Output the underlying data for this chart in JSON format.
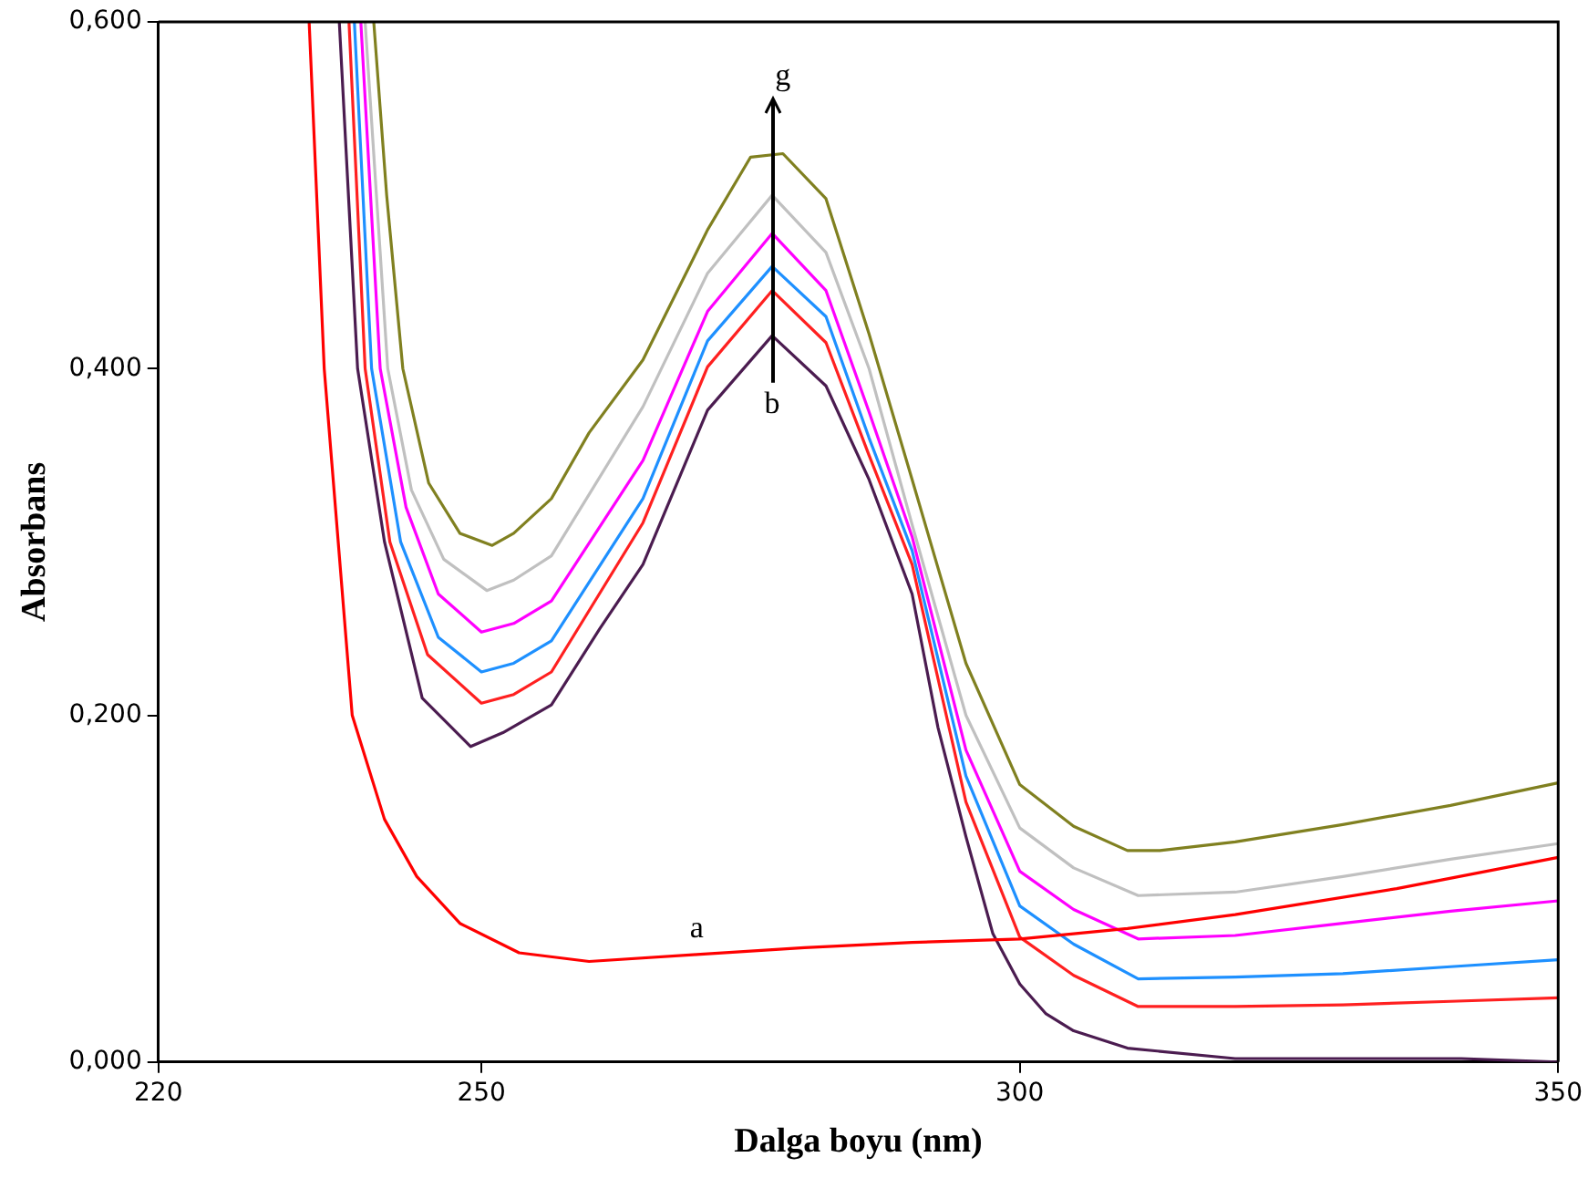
{
  "chart_data": {
    "type": "line",
    "xlabel": "Dalga boyu (nm)",
    "ylabel": "Absorbans",
    "xlim": [
      220,
      350
    ],
    "xticks": [
      220,
      250,
      300,
      350
    ],
    "ylim": [
      0,
      0.6
    ],
    "yticks": [
      {
        "value": 0,
        "label": "0,000"
      },
      {
        "value": 0.2,
        "label": "0,200"
      },
      {
        "value": 0.4,
        "label": "0,400"
      },
      {
        "value": 0.6,
        "label": "0,600"
      }
    ],
    "marker": "none",
    "series": [
      {
        "name": "a",
        "color": "#ff0000",
        "x": [
          234,
          235.4,
          238,
          241,
          244,
          248,
          253.5,
          260,
          270,
          280,
          290,
          300,
          310,
          320,
          335,
          350
        ],
        "values": [
          0.6,
          0.4,
          0.2,
          0.14,
          0.107,
          0.08,
          0.063,
          0.058,
          0.062,
          0.066,
          0.069,
          0.071,
          0.077,
          0.085,
          0.1,
          0.118
        ]
      },
      {
        "name": "b",
        "color": "#4b1c50",
        "x": [
          236.8,
          238.5,
          241,
          244.5,
          249,
          252,
          256.5,
          261,
          265,
          271,
          277,
          282,
          286,
          290,
          292.4,
          295,
          297.5,
          300,
          302.4,
          305,
          310,
          320,
          341,
          350
        ],
        "values": [
          0.6,
          0.4,
          0.3,
          0.21,
          0.182,
          0.19,
          0.206,
          0.25,
          0.287,
          0.376,
          0.419,
          0.39,
          0.336,
          0.27,
          0.193,
          0.13,
          0.074,
          0.045,
          0.028,
          0.018,
          0.008,
          0.002,
          0.002,
          0
        ]
      },
      {
        "color": "#ff2020",
        "x": [
          237.7,
          239.2,
          241.5,
          245,
          250,
          253,
          256.5,
          265,
          271,
          277,
          282,
          286,
          290,
          295,
          300,
          305,
          311,
          320,
          330,
          340,
          350
        ],
        "values": [
          0.6,
          0.4,
          0.3,
          0.235,
          0.207,
          0.212,
          0.225,
          0.311,
          0.401,
          0.445,
          0.415,
          0.35,
          0.287,
          0.15,
          0.072,
          0.05,
          0.032,
          0.032,
          0.033,
          0.035,
          0.037
        ]
      },
      {
        "color": "#1e90ff",
        "x": [
          238.2,
          239.8,
          242.5,
          246,
          250,
          253,
          256.5,
          265,
          271,
          277,
          282,
          286,
          290,
          295,
          300,
          305,
          311,
          320,
          330,
          340,
          350
        ],
        "values": [
          0.6,
          0.4,
          0.3,
          0.245,
          0.225,
          0.23,
          0.243,
          0.325,
          0.416,
          0.459,
          0.43,
          0.36,
          0.295,
          0.165,
          0.09,
          0.068,
          0.048,
          0.049,
          0.051,
          0.055,
          0.059
        ]
      },
      {
        "color": "#ff00ff",
        "x": [
          238.8,
          240.6,
          243,
          246,
          250,
          253,
          256.5,
          265,
          271,
          277,
          282,
          286,
          290,
          295,
          300,
          305,
          311,
          320,
          330,
          340,
          350
        ],
        "values": [
          0.6,
          0.4,
          0.32,
          0.27,
          0.248,
          0.253,
          0.266,
          0.347,
          0.433,
          0.478,
          0.445,
          0.375,
          0.303,
          0.18,
          0.11,
          0.088,
          0.071,
          0.073,
          0.08,
          0.087,
          0.093
        ]
      },
      {
        "color": "#c0c0c0",
        "x": [
          239.2,
          241.3,
          243.5,
          246.5,
          250.5,
          253,
          256.5,
          265,
          271,
          277,
          282,
          286,
          290,
          295,
          300,
          305,
          311,
          320,
          330,
          340,
          350
        ],
        "values": [
          0.6,
          0.4,
          0.33,
          0.29,
          0.272,
          0.278,
          0.292,
          0.378,
          0.455,
          0.5,
          0.467,
          0.4,
          0.31,
          0.2,
          0.135,
          0.112,
          0.096,
          0.098,
          0.107,
          0.117,
          0.126
        ]
      },
      {
        "name": "g",
        "color": "#808020",
        "x": [
          240,
          241.2,
          242.7,
          245.1,
          248,
          251,
          253,
          256.5,
          260,
          265,
          271,
          275,
          278,
          282,
          286,
          290,
          295,
          300,
          305,
          310,
          313,
          320,
          330,
          340,
          350
        ],
        "values": [
          0.6,
          0.5,
          0.4,
          0.334,
          0.305,
          0.298,
          0.305,
          0.325,
          0.363,
          0.405,
          0.48,
          0.522,
          0.524,
          0.498,
          0.42,
          0.336,
          0.23,
          0.16,
          0.136,
          0.122,
          0.122,
          0.127,
          0.137,
          0.148,
          0.161
        ]
      }
    ]
  }
}
